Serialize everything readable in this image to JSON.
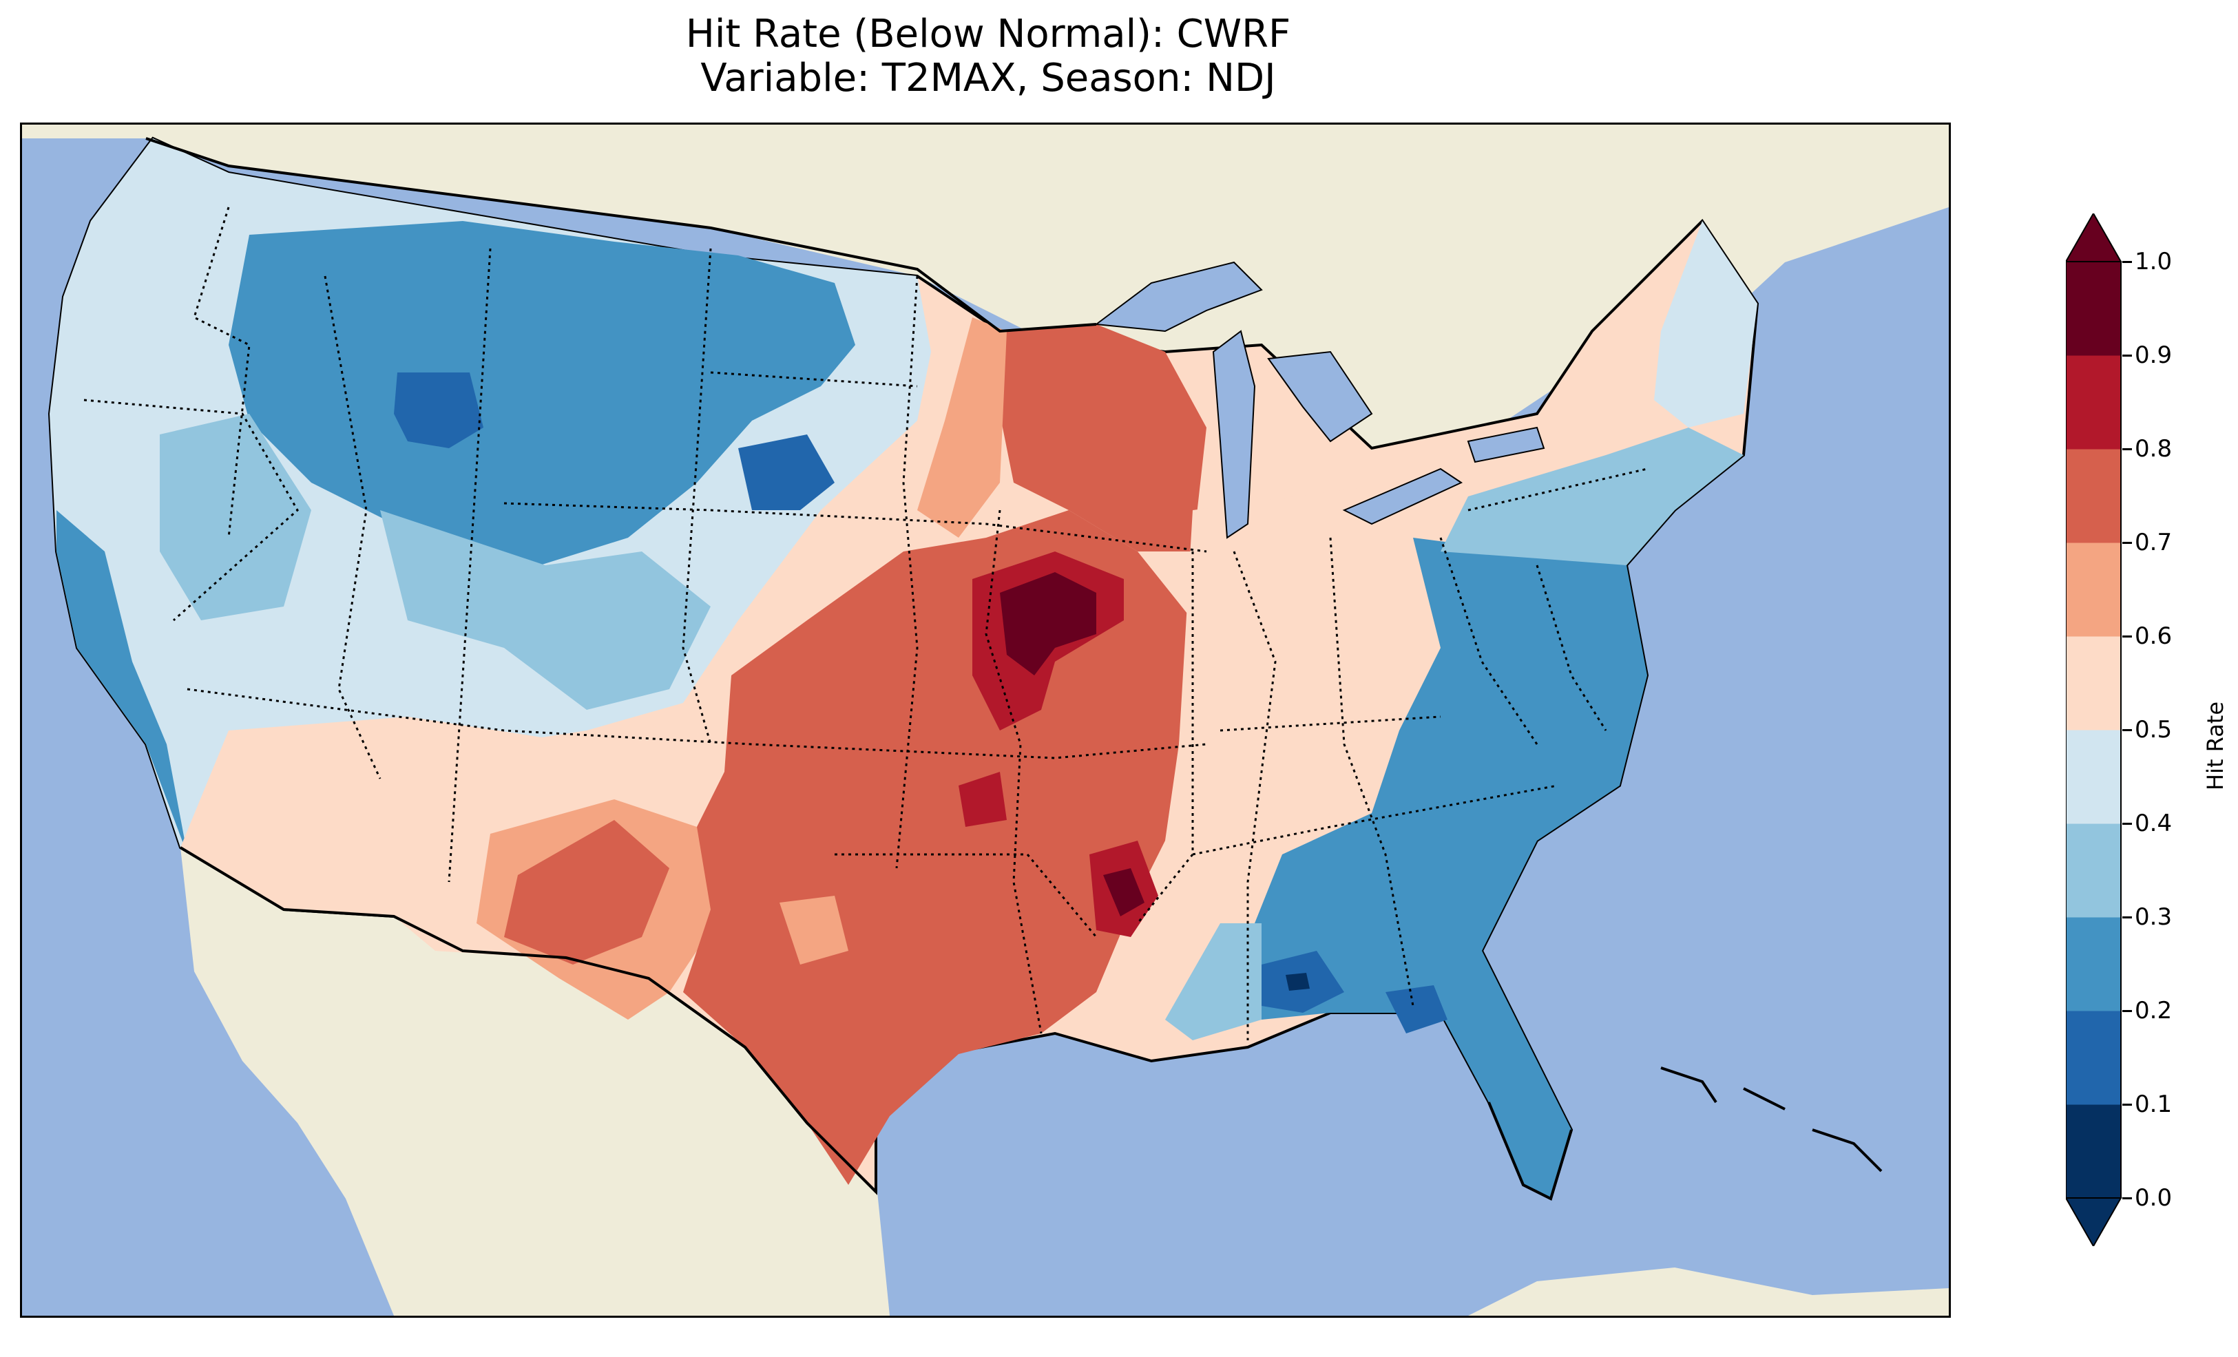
{
  "title": {
    "line1": "Hit Rate (Below Normal): CWRF",
    "line2": "Variable: T2MAX, Season: NDJ"
  },
  "colorbar": {
    "label": "Hit Rate",
    "ticks": [
      "0.0",
      "0.1",
      "0.2",
      "0.3",
      "0.4",
      "0.5",
      "0.6",
      "0.7",
      "0.8",
      "0.9",
      "1.0"
    ],
    "levels": [
      0.0,
      0.1,
      0.2,
      0.3,
      0.4,
      0.5,
      0.6,
      0.7,
      0.8,
      0.9,
      1.0
    ],
    "colors": [
      "#053061",
      "#2166ac",
      "#4393c3",
      "#92c5de",
      "#d1e5f0",
      "#fddbc7",
      "#f4a582",
      "#d6604d",
      "#b2182b",
      "#67001f"
    ],
    "extend": "both"
  },
  "map_colors": {
    "ocean": "#97b5e0",
    "land": "#efecd9",
    "lake": "#97b5e0"
  },
  "regions": [
    {
      "name": "pacific-northwest",
      "level": 0.45
    },
    {
      "name": "northern-rockies",
      "level": 0.25
    },
    {
      "name": "idaho-core",
      "level": 0.05
    },
    {
      "name": "great-basin",
      "level": 0.45
    },
    {
      "name": "california-coast",
      "level": 0.35
    },
    {
      "name": "southwest",
      "level": 0.55
    },
    {
      "name": "new-mexico-texas-west",
      "level": 0.65
    },
    {
      "name": "southern-plains",
      "level": 0.75
    },
    {
      "name": "upper-midwest",
      "level": 0.75
    },
    {
      "name": "iowa-core",
      "level": 0.95
    },
    {
      "name": "arkansas-hotspot",
      "level": 0.95
    },
    {
      "name": "ohio-valley",
      "level": 0.55
    },
    {
      "name": "southeast",
      "level": 0.25
    },
    {
      "name": "gulf-coast-minimum",
      "level": 0.15
    },
    {
      "name": "northeast",
      "level": 0.35
    }
  ]
}
